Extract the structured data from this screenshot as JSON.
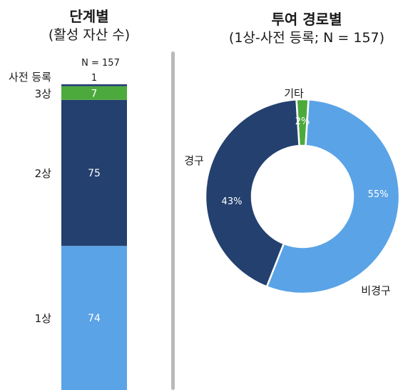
{
  "left_chart": {
    "title": "단계별",
    "subtitle": "(활성 자산 수)",
    "total_label": "N = 157"
  },
  "right_chart": {
    "title": "투여 경로별",
    "subtitle": "(1상-사전 등록; N = 157)"
  },
  "colors": {
    "light_blue": "#5aa3e6",
    "navy": "#23406f",
    "green": "#4caa3c"
  },
  "chart_data": [
    {
      "type": "bar",
      "stacked": true,
      "title": "단계별",
      "subtitle": "(활성 자산 수)",
      "total": "N = 157",
      "categories": [
        "1상",
        "2상",
        "3상",
        "사전 등록"
      ],
      "values": [
        74,
        75,
        7,
        1
      ],
      "colors": [
        "#5aa3e6",
        "#23406f",
        "#4caa3c",
        "#23406f"
      ],
      "value_labels": [
        "74",
        "75",
        "7",
        "1"
      ]
    },
    {
      "type": "pie",
      "donut": true,
      "title": "투여 경로별",
      "subtitle": "(1상-사전 등록; N = 157)",
      "labels": [
        "비경구",
        "경구",
        "기타"
      ],
      "values": [
        55,
        43,
        2
      ],
      "value_labels": [
        "55%",
        "43%",
        "2%"
      ],
      "colors": [
        "#5aa3e6",
        "#23406f",
        "#4caa3c"
      ]
    }
  ]
}
